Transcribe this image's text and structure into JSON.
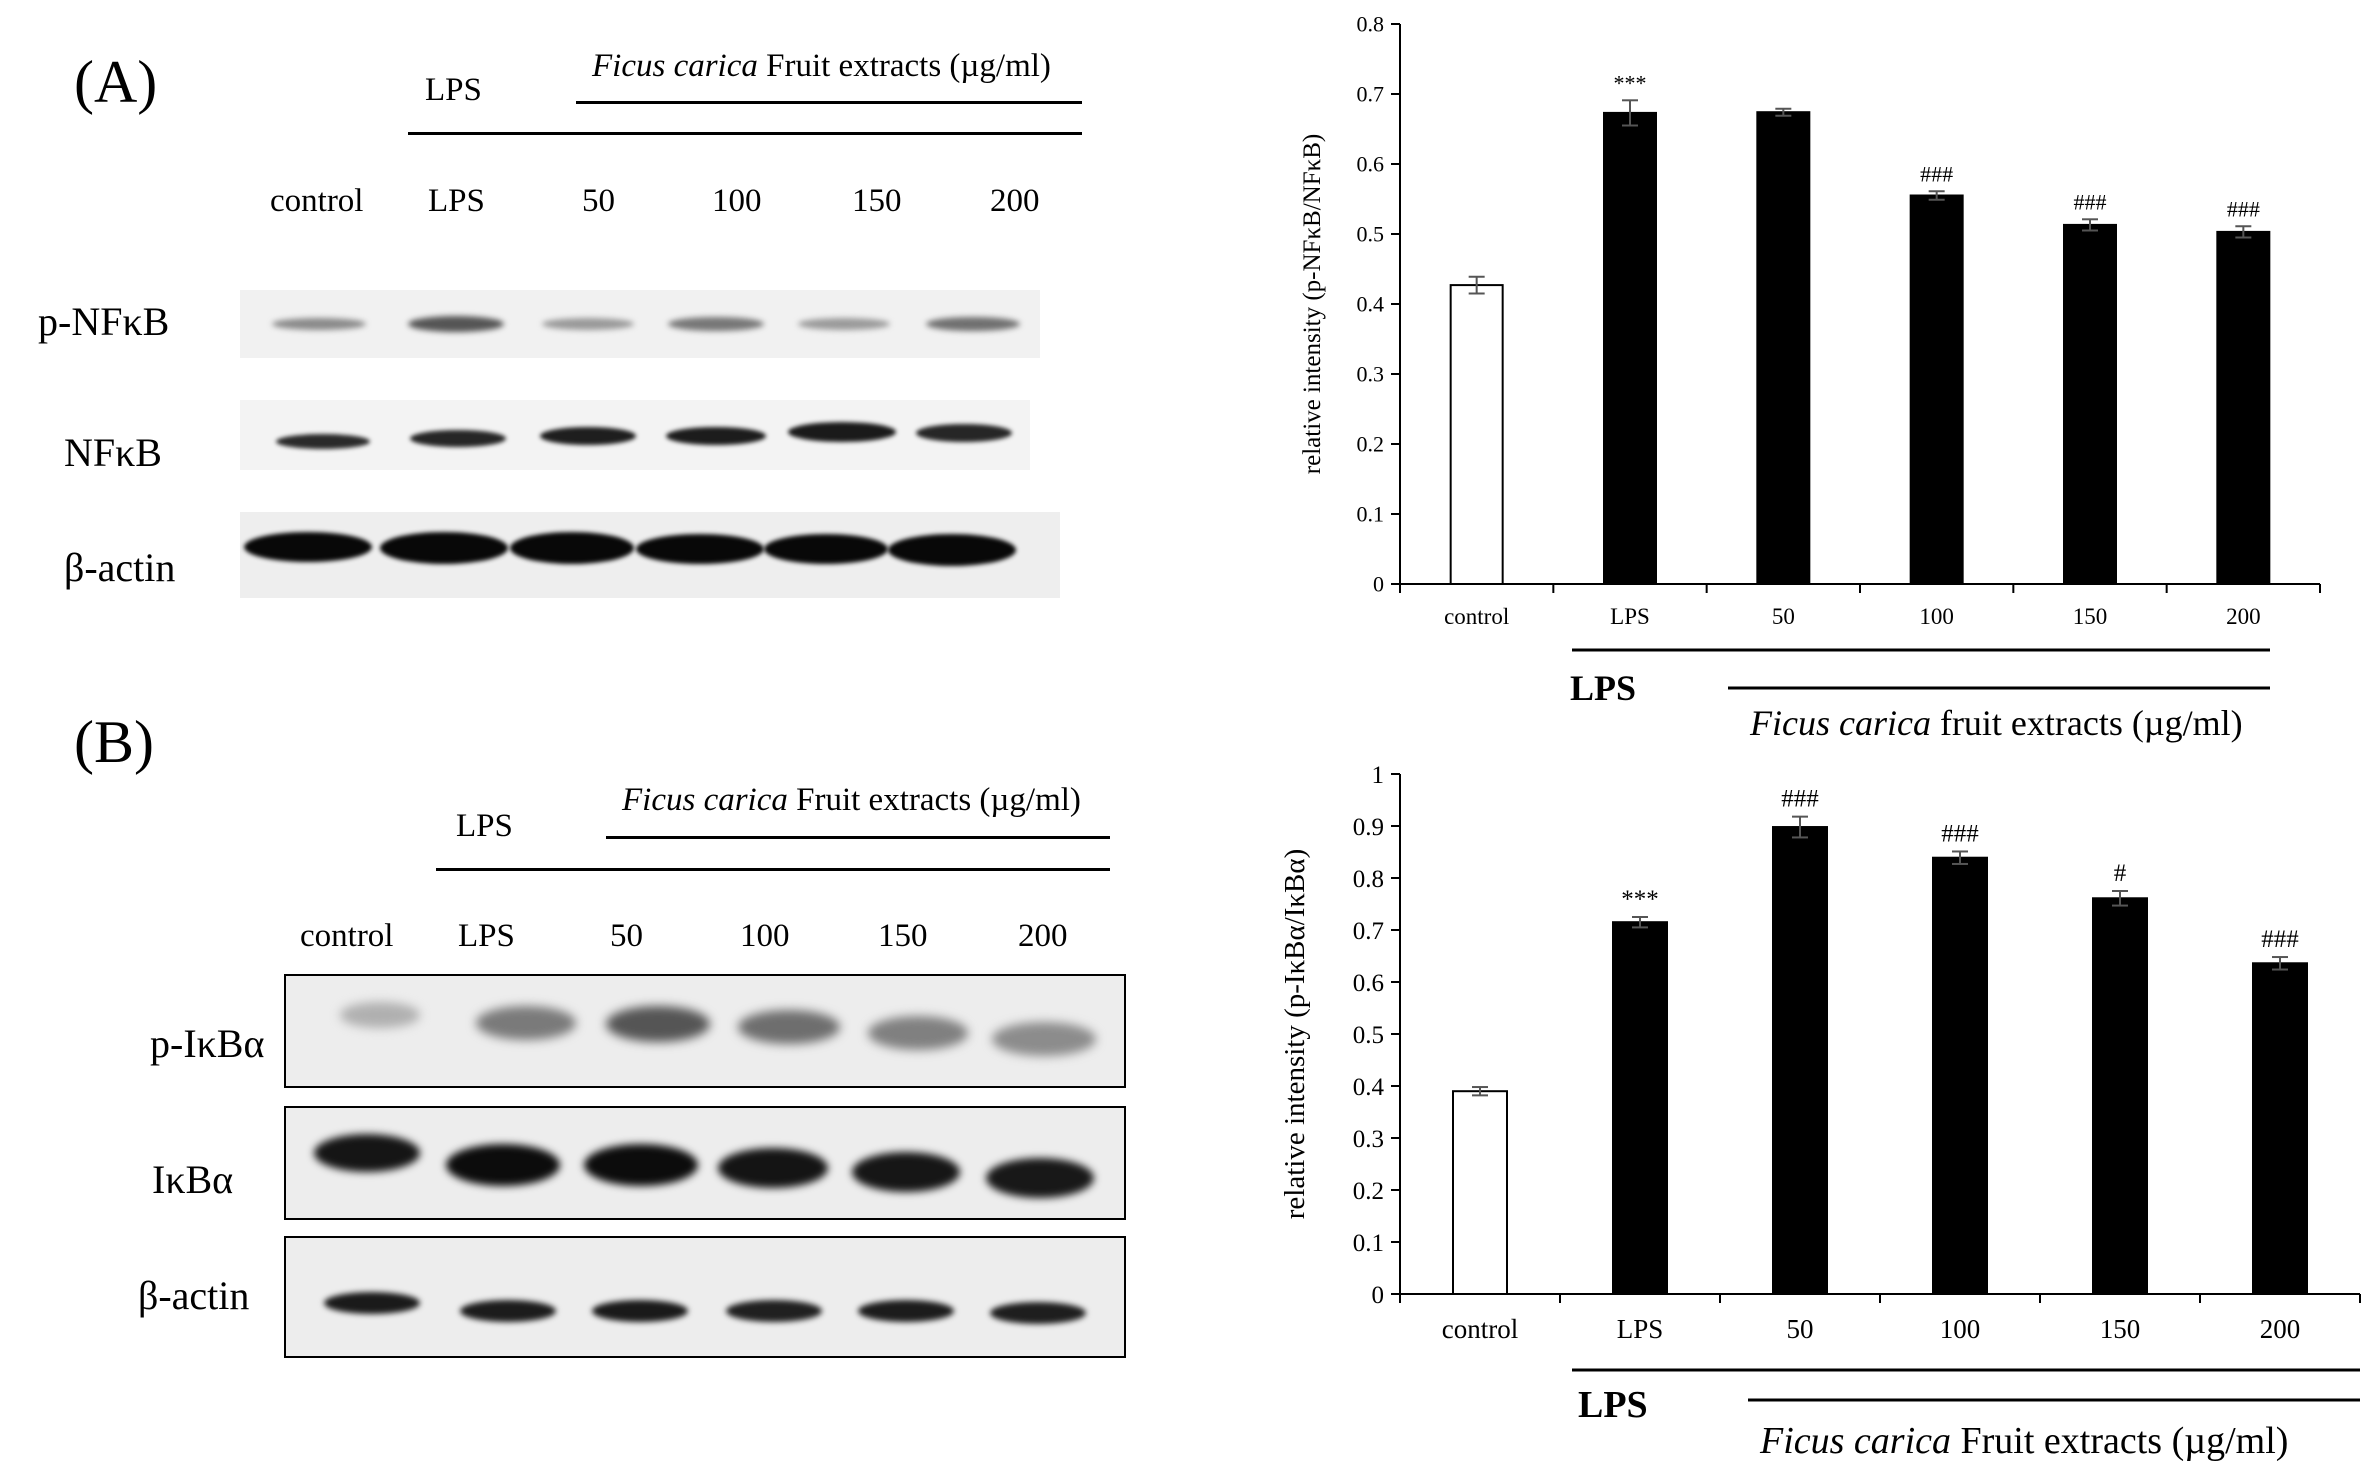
{
  "panelA": {
    "label": "(A)",
    "blot_header": {
      "lps": "LPS",
      "extract_italic": "Ficus carica",
      "extract_rest": " Fruit extracts (µg/ml)"
    },
    "lanes": [
      "control",
      "LPS",
      "50",
      "100",
      "150",
      "200"
    ],
    "rows": [
      "p-NFκB",
      "NFκB",
      "β-actin"
    ]
  },
  "panelB": {
    "label": "(B)",
    "blot_header": {
      "lps": "LPS",
      "extract_italic": "Ficus carica",
      "extract_rest": " Fruit extracts (µg/ml)"
    },
    "lanes": [
      "control",
      "LPS",
      "50",
      "100",
      "150",
      "200"
    ],
    "rows": [
      "p-IκBα",
      "IκBα",
      "β-actin"
    ]
  },
  "chart_data": [
    {
      "type": "bar",
      "ylabel": "relative intensity (p-NFκB/NFκB)",
      "categories": [
        "control",
        "LPS",
        "50",
        "100",
        "150",
        "200"
      ],
      "values": [
        0.427,
        0.673,
        0.674,
        0.555,
        0.513,
        0.503
      ],
      "errors": [
        0.012,
        0.018,
        0.005,
        0.006,
        0.008,
        0.008
      ],
      "annotations": [
        "",
        "***",
        "",
        "###",
        "###",
        "###"
      ],
      "bar_colors": [
        "#ffffff",
        "#000000",
        "#000000",
        "#000000",
        "#000000",
        "#000000"
      ],
      "ylim": [
        0,
        0.8
      ],
      "yticks": [
        "0",
        "0.1",
        "0.2",
        "0.3",
        "0.4",
        "0.5",
        "0.6",
        "0.7",
        "0.8"
      ],
      "caption": {
        "lps": "LPS",
        "extract_italic": "Ficus carica",
        "extract_rest": " fruit extracts (µg/ml)"
      },
      "grid": false
    },
    {
      "type": "bar",
      "ylabel": "relative intensity (p-IκBα/IκBα)",
      "categories": [
        "control",
        "LPS",
        "50",
        "100",
        "150",
        "200"
      ],
      "values": [
        0.39,
        0.715,
        0.898,
        0.839,
        0.761,
        0.636
      ],
      "errors": [
        0.008,
        0.01,
        0.02,
        0.012,
        0.014,
        0.012
      ],
      "annotations": [
        "",
        "***",
        "###",
        "###",
        "#",
        "###"
      ],
      "bar_colors": [
        "#ffffff",
        "#000000",
        "#000000",
        "#000000",
        "#000000",
        "#000000"
      ],
      "ylim": [
        0,
        1
      ],
      "yticks": [
        "0",
        "0.1",
        "0.2",
        "0.3",
        "0.4",
        "0.5",
        "0.6",
        "0.7",
        "0.8",
        "0.9",
        "1"
      ],
      "caption": {
        "lps": "LPS",
        "extract_italic": "Ficus carica",
        "extract_rest": " Fruit extracts (µg/ml)"
      },
      "grid": false
    }
  ]
}
